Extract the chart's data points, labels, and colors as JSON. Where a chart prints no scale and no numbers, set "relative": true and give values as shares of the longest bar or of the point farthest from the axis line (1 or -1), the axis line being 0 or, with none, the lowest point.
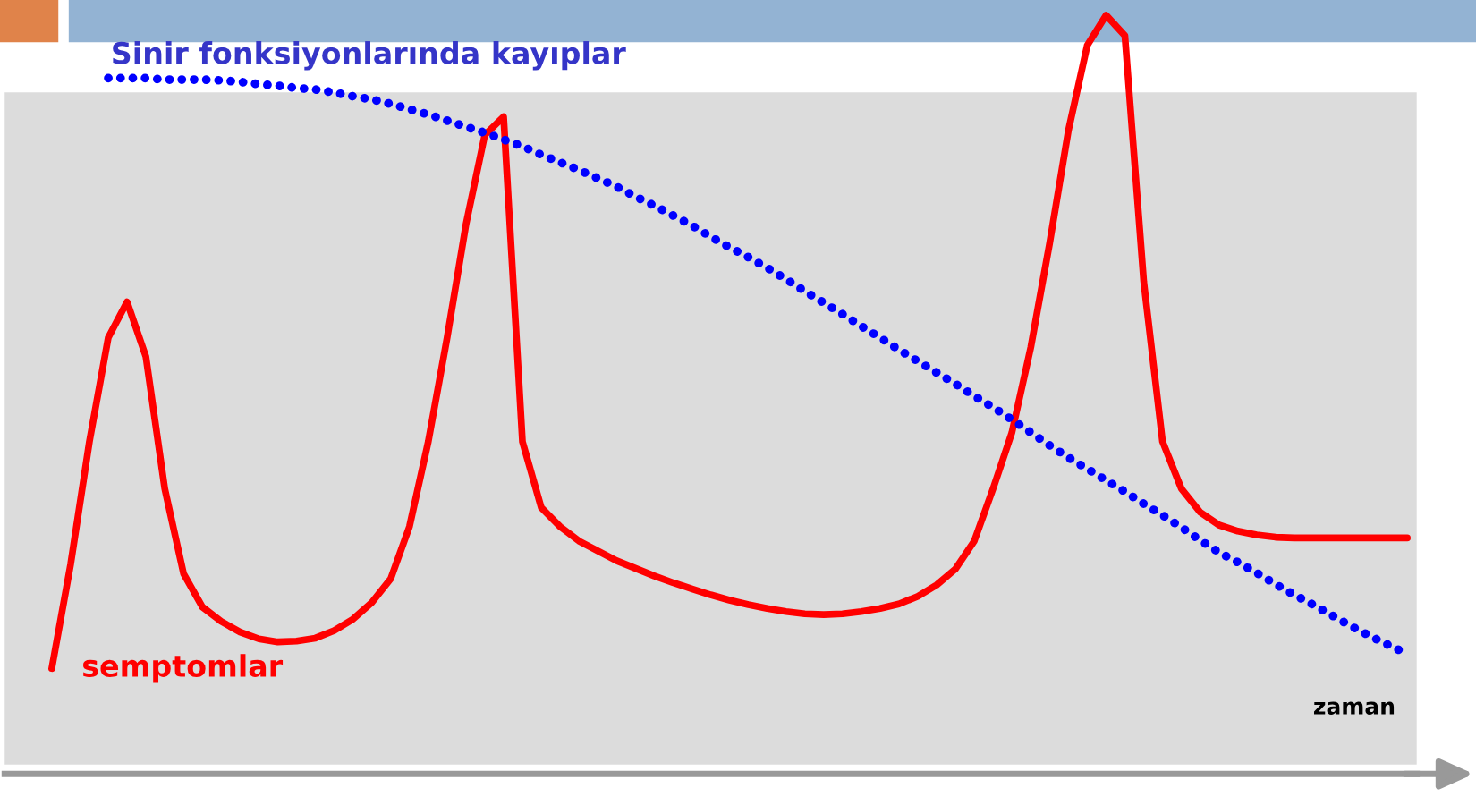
{
  "chart_data": {
    "type": "line",
    "relative": true,
    "xlabel": "zaman",
    "legend": false,
    "grid": false,
    "categories": [
      null,
      null,
      null,
      null,
      null,
      null,
      null,
      null,
      null,
      null,
      null,
      null,
      null,
      null,
      null,
      null,
      null,
      null,
      null,
      null,
      null,
      null,
      null,
      null,
      null,
      null,
      null,
      null,
      null,
      null,
      null,
      null,
      null,
      null,
      null,
      null,
      null,
      null,
      null,
      null,
      null,
      null,
      null,
      null,
      null,
      null,
      null,
      null,
      null,
      null,
      null,
      null,
      null,
      null,
      null,
      null,
      null,
      null,
      null,
      null,
      null,
      null,
      null,
      null,
      null,
      null,
      null,
      null,
      null,
      null,
      null,
      null,
      null
    ],
    "series": [
      {
        "name": "semptomlar",
        "color": "#ff0000",
        "line_style": "solid",
        "values": [
          0.139,
          0.276,
          0.438,
          0.575,
          0.622,
          0.55,
          0.376,
          0.264,
          0.22,
          0.201,
          0.187,
          0.178,
          0.174,
          0.175,
          0.179,
          0.189,
          0.204,
          0.226,
          0.257,
          0.326,
          0.438,
          0.575,
          0.724,
          0.842,
          0.866,
          0.438,
          0.351,
          0.326,
          0.307,
          0.294,
          0.281,
          0.271,
          0.261,
          0.252,
          0.244,
          0.236,
          0.229,
          0.223,
          0.218,
          0.214,
          0.211,
          0.21,
          0.211,
          0.214,
          0.218,
          0.224,
          0.234,
          0.249,
          0.27,
          0.307,
          0.376,
          0.45,
          0.562,
          0.699,
          0.848,
          0.96,
          1,
          0.973,
          0.649,
          0.438,
          0.376,
          0.345,
          0.328,
          0.32,
          0.315,
          0.312,
          0.311,
          0.311,
          0.311,
          0.311,
          0.311,
          0.311,
          0.311
        ]
      },
      {
        "name": "Sinir fonksiyonlarında kayıplar",
        "color": "#0000ff",
        "line_style": "dotted",
        "values": [
          null,
          null,
          null,
          0.917,
          0.917,
          0.917,
          0.915,
          0.915,
          0.915,
          0.914,
          0.912,
          0.909,
          0.907,
          0.904,
          0.902,
          0.898,
          0.893,
          0.889,
          0.883,
          0.876,
          0.869,
          0.861,
          0.853,
          0.845,
          0.836,
          0.827,
          0.816,
          0.806,
          0.796,
          0.785,
          0.774,
          0.761,
          0.749,
          0.736,
          0.723,
          0.708,
          0.694,
          0.681,
          0.667,
          0.652,
          0.636,
          0.621,
          0.606,
          0.59,
          0.575,
          0.559,
          0.544,
          0.529,
          0.514,
          0.498,
          0.483,
          0.467,
          0.45,
          0.433,
          0.417,
          0.402,
          0.387,
          0.372,
          0.356,
          0.341,
          0.325,
          0.308,
          0.292,
          0.279,
          0.265,
          0.25,
          0.236,
          0.223,
          0.209,
          0.195,
          0.182,
          0.17,
          0.158
        ]
      }
    ]
  }
}
